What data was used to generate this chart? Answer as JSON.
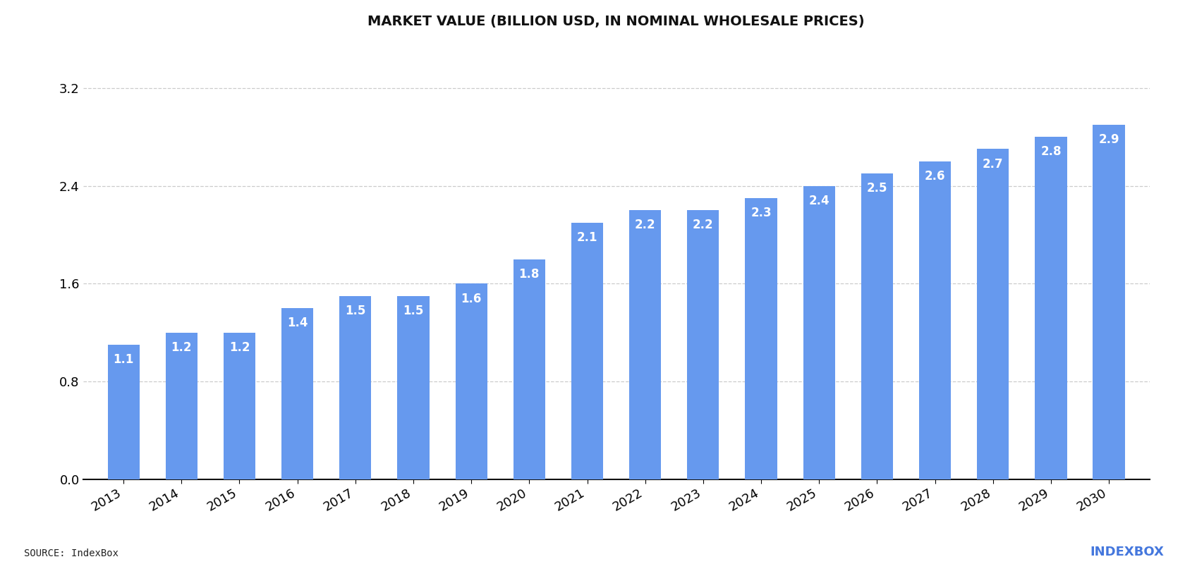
{
  "title": "MARKET VALUE (BILLION USD, IN NOMINAL WHOLESALE PRICES)",
  "years": [
    2013,
    2014,
    2015,
    2016,
    2017,
    2018,
    2019,
    2020,
    2021,
    2022,
    2023,
    2024,
    2025,
    2026,
    2027,
    2028,
    2029,
    2030
  ],
  "values": [
    1.1,
    1.2,
    1.2,
    1.4,
    1.5,
    1.5,
    1.6,
    1.8,
    2.1,
    2.2,
    2.2,
    2.3,
    2.4,
    2.5,
    2.6,
    2.7,
    2.8,
    2.9
  ],
  "bar_color": "#6699ee",
  "background_color": "#ffffff",
  "title_fontsize": 14,
  "tick_fontsize": 13,
  "ytick_labels": [
    "0.0",
    "0.8",
    "1.6",
    "2.4",
    "3.2"
  ],
  "ytick_values": [
    0.0,
    0.8,
    1.6,
    2.4,
    3.2
  ],
  "ylim": [
    0,
    3.55
  ],
  "source_text": "SOURCE: IndexBox",
  "grid_color": "#cccccc",
  "bar_label_color": "#ffffff",
  "bar_label_fontsize": 12,
  "bar_width": 0.55
}
